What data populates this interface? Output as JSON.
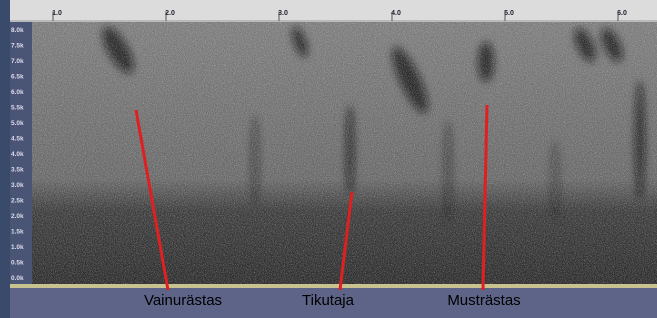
{
  "ruler": {
    "ticks": [
      "1.0",
      "2.0",
      "3.0",
      "4.0",
      "5.0",
      "6.0"
    ]
  },
  "frequency_axis": {
    "labels": [
      "8.0k",
      "7.5k",
      "7.0k",
      "6.5k",
      "6.0k",
      "5.5k",
      "5.0k",
      "4.5k",
      "4.0k",
      "3.5k",
      "3.0k",
      "2.5k",
      "2.0k",
      "1.5k",
      "1.0k",
      "0.5k",
      "0.0k"
    ]
  },
  "annotations": [
    {
      "label": "Vainurästas"
    },
    {
      "label": "Tikutaja"
    },
    {
      "label": "Musträstas"
    }
  ]
}
